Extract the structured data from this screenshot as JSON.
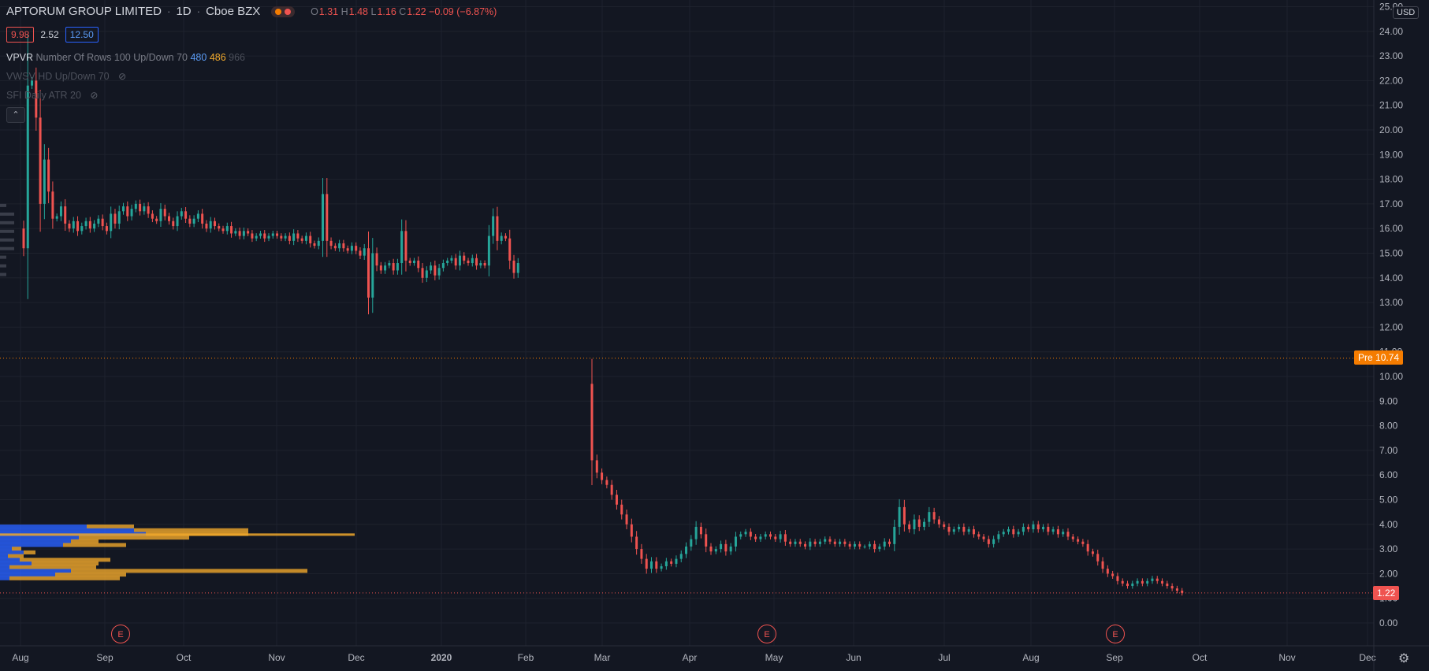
{
  "header": {
    "symbol": "APTORUM GROUP LIMITED",
    "interval": "1D",
    "exchange": "Cboe BZX",
    "ohlc": {
      "o_label": "O",
      "o": "1.31",
      "h_label": "H",
      "h": "1.48",
      "l_label": "L",
      "l": "1.16",
      "c_label": "C",
      "c": "1.22",
      "change": "−0.09 (−6.87%)"
    }
  },
  "price_boxes": {
    "bid": "9.98",
    "spread": "2.52",
    "ask": "12.50"
  },
  "indicators": [
    {
      "name": "VPVR",
      "params": "Number Of Rows 100 Up/Down 70",
      "up": "480",
      "down": "486",
      "total": "966"
    },
    {
      "name": "VWSV HD Up/Down 70"
    },
    {
      "name": "SFI Daily ATR 20"
    }
  ],
  "price_axis": {
    "currency": "USD",
    "labels": [
      "25.00",
      "24.00",
      "23.00",
      "22.00",
      "21.00",
      "20.00",
      "19.00",
      "18.00",
      "17.00",
      "16.00",
      "15.00",
      "14.00",
      "13.00",
      "12.00",
      "11.00",
      "10.00",
      "9.00",
      "8.00",
      "7.00",
      "6.00",
      "5.00",
      "4.00",
      "3.00",
      "2.00",
      "1.00",
      "0.00"
    ]
  },
  "time_axis": {
    "labels": [
      "Aug",
      "Sep",
      "Oct",
      "Nov",
      "Dec",
      "2020",
      "Feb",
      "Mar",
      "Apr",
      "May",
      "Jun",
      "Jul",
      "Aug",
      "Sep",
      "Oct",
      "Nov",
      "Dec"
    ]
  },
  "tags": {
    "pre_label": "Pre",
    "pre_price": "10.74",
    "last_price": "1.22"
  },
  "earnings_marker": "E",
  "colors": {
    "up": "#26a69a",
    "down": "#ef5350",
    "background": "#131722",
    "grid": "#1e222d",
    "pre_line": "#f57c00",
    "vp_up": "#2962ff",
    "vp_down": "#f0a82c"
  },
  "chart_data": {
    "type": "candlestick",
    "y_range": [
      0,
      25
    ],
    "pre_market_price": 10.74,
    "last_price": 1.22,
    "segments": [
      {
        "period": "2019-08 to 2020-02",
        "start": 16.0,
        "points": [
          15.2,
          21.8,
          22.0,
          20.5,
          17.0,
          18.8,
          17.5,
          16.4,
          16.5,
          16.9,
          16.2,
          16.0,
          16.3,
          15.9,
          16.1,
          16.3,
          16.0,
          16.2,
          16.4,
          16.1,
          15.9,
          16.6,
          16.2,
          16.7,
          16.9,
          16.5,
          16.8,
          17.0,
          16.7,
          16.9,
          16.6,
          16.4,
          16.3,
          16.8,
          16.5,
          16.3,
          16.1,
          16.5,
          16.7,
          16.4,
          16.2,
          16.4,
          16.6,
          16.2,
          16.0,
          16.3,
          16.1,
          16.0,
          15.9,
          16.1,
          15.8,
          15.9,
          15.7,
          15.9,
          15.8,
          15.6,
          15.7,
          15.8,
          15.6,
          15.7,
          15.8,
          15.7,
          15.6,
          15.7,
          15.5,
          15.8,
          15.6,
          15.5,
          15.7,
          15.4,
          15.3,
          15.5,
          17.4,
          15.5,
          15.3,
          15.2,
          15.4,
          15.2,
          15.1,
          15.3,
          15.1,
          14.9,
          15.2,
          13.2,
          15.0,
          14.5,
          14.3,
          14.5,
          14.6,
          14.3,
          14.6,
          15.9,
          14.7,
          14.6,
          14.7,
          14.4,
          14.0,
          14.3,
          14.5,
          14.1,
          14.4,
          14.6,
          14.7,
          14.8,
          14.5,
          14.9,
          14.7,
          14.6,
          14.8,
          14.5,
          14.6,
          14.5,
          15.7,
          16.5,
          15.5,
          15.7,
          15.6,
          14.7,
          14.2,
          14.6
        ]
      },
      {
        "period": "2020-02 to 2020-09",
        "start": 9.7,
        "points": [
          6.6,
          6.1,
          5.8,
          5.6,
          5.2,
          4.8,
          4.4,
          4.0,
          3.5,
          3.0,
          2.6,
          2.2,
          2.5,
          2.2,
          2.3,
          2.5,
          2.4,
          2.6,
          2.8,
          3.1,
          3.4,
          3.9,
          3.6,
          3.1,
          2.9,
          3.0,
          3.2,
          2.9,
          3.1,
          3.5,
          3.6,
          3.7,
          3.5,
          3.4,
          3.5,
          3.6,
          3.5,
          3.4,
          3.6,
          3.3,
          3.2,
          3.3,
          3.2,
          3.1,
          3.3,
          3.2,
          3.3,
          3.4,
          3.3,
          3.2,
          3.3,
          3.2,
          3.1,
          3.2,
          3.1,
          3.1,
          3.2,
          3.0,
          3.1,
          3.3,
          3.2,
          3.9,
          4.7,
          4.0,
          3.8,
          4.2,
          3.9,
          4.1,
          4.5,
          4.2,
          4.0,
          3.9,
          3.7,
          3.8,
          3.9,
          3.7,
          3.8,
          3.6,
          3.5,
          3.4,
          3.2,
          3.4,
          3.6,
          3.7,
          3.8,
          3.6,
          3.7,
          3.9,
          3.8,
          4.0,
          3.8,
          3.9,
          3.7,
          3.8,
          3.6,
          3.7,
          3.5,
          3.4,
          3.3,
          3.2,
          2.9,
          2.8,
          2.5,
          2.2,
          2.0,
          1.9,
          1.7,
          1.6,
          1.5,
          1.6,
          1.7,
          1.6,
          1.7,
          1.8,
          1.7,
          1.6,
          1.5,
          1.4,
          1.31,
          1.22
        ]
      }
    ]
  }
}
